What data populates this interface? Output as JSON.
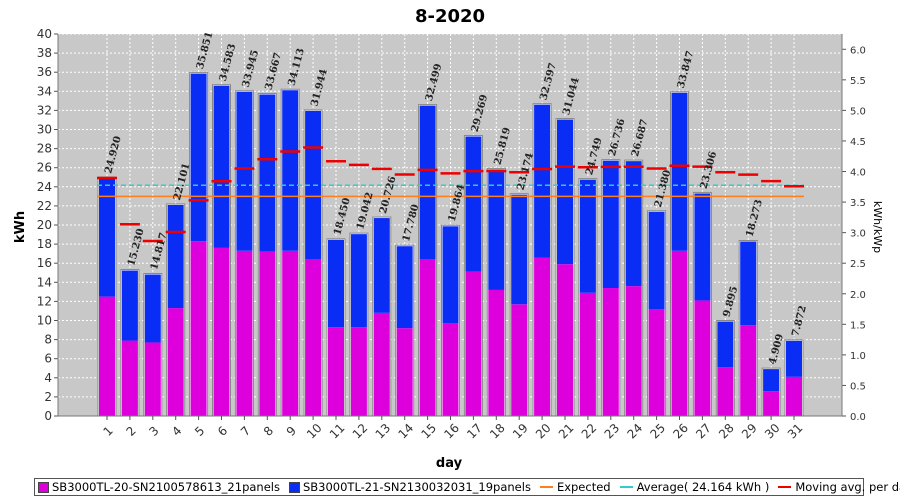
{
  "chart_data": {
    "type": "bar",
    "title": "8-2020",
    "xlabel": "day",
    "ylabel": "kWh",
    "ylabel_right": "kWh/kWp",
    "ylim": [
      0,
      40
    ],
    "yticks": [
      0,
      2,
      4,
      6,
      8,
      10,
      12,
      14,
      16,
      18,
      20,
      22,
      24,
      26,
      28,
      30,
      32,
      34,
      36,
      38,
      40
    ],
    "ylim_right": [
      0,
      6.25
    ],
    "yticks_right": [
      "0.0",
      "0.5",
      "1.0",
      "1.5",
      "2.0",
      "2.5",
      "3.0",
      "3.5",
      "4.0",
      "4.5",
      "5.0",
      "5.5",
      "6.0"
    ],
    "categories": [
      "1",
      "2",
      "3",
      "4",
      "5",
      "6",
      "7",
      "8",
      "9",
      "10",
      "11",
      "12",
      "13",
      "14",
      "15",
      "16",
      "17",
      "18",
      "19",
      "20",
      "21",
      "22",
      "23",
      "24",
      "25",
      "26",
      "27",
      "28",
      "29",
      "30",
      "31"
    ],
    "total_labels": [
      "24.920",
      "15.230",
      "14.817",
      "22.101",
      "35.851",
      "34.583",
      "33.945",
      "33.667",
      "34.113",
      "31.944",
      "18.450",
      "19.042",
      "20.726",
      "17.780",
      "32.499",
      "19.864",
      "29.269",
      "25.819",
      "23.174",
      "32.597",
      "31.044",
      "24.749",
      "26.736",
      "26.687",
      "21.380",
      "33.847",
      "23.306",
      "9.895",
      "18.273",
      "4.909",
      "7.872"
    ],
    "series": [
      {
        "name": "SB3000TL-20-SN2100578613_21panels",
        "color": "#dd00dd",
        "kind": "bar",
        "values": [
          12.5,
          7.9,
          7.7,
          11.3,
          18.3,
          17.6,
          17.3,
          17.2,
          17.3,
          16.4,
          9.3,
          9.3,
          10.8,
          9.2,
          16.4,
          9.7,
          15.1,
          13.2,
          11.7,
          16.6,
          15.9,
          12.9,
          13.4,
          13.6,
          11.2,
          17.3,
          12.1,
          5.1,
          9.5,
          2.6,
          4.1
        ]
      },
      {
        "name": "SB3000TL-21-SN2130032031_19panels",
        "color": "#0a2df5",
        "kind": "bar",
        "values": [
          12.42,
          7.33,
          7.117,
          10.801,
          17.551,
          16.983,
          16.645,
          16.467,
          16.813,
          15.544,
          9.15,
          9.742,
          9.926,
          8.58,
          16.099,
          10.164,
          14.169,
          12.619,
          11.474,
          15.997,
          15.144,
          11.849,
          13.336,
          13.087,
          10.18,
          16.547,
          11.206,
          4.795,
          8.773,
          2.309,
          3.772
        ]
      },
      {
        "name": "Expected",
        "color": "#ff7f1e",
        "kind": "line",
        "value": 23.0
      },
      {
        "name": "Average( 24.164 kWh )",
        "color": "#33cccc",
        "kind": "line",
        "value": 24.164
      },
      {
        "name": "Moving avg. per day.",
        "color": "#ee0000",
        "kind": "step",
        "values": [
          24.92,
          20.08,
          18.33,
          19.27,
          22.58,
          24.58,
          25.92,
          26.89,
          27.69,
          28.11,
          26.67,
          26.3,
          25.88,
          25.29,
          25.77,
          25.41,
          25.64,
          25.65,
          25.52,
          25.87,
          26.11,
          26.05,
          26.08,
          26.1,
          25.91,
          26.21,
          26.11,
          25.53,
          25.28,
          24.6,
          24.06
        ]
      }
    ],
    "legend": [
      {
        "label": "SB3000TL-20-SN2100578613_21panels",
        "color": "#dd00dd",
        "kind": "box"
      },
      {
        "label": "SB3000TL-21-SN2130032031_19panels",
        "color": "#0a2df5",
        "kind": "box"
      },
      {
        "label": "Expected",
        "color": "#ff7f1e",
        "kind": "line"
      },
      {
        "label": "Average( 24.164 kWh )",
        "color": "#33cccc",
        "kind": "line"
      },
      {
        "label": "Moving avg. per day.",
        "color": "#ee0000",
        "kind": "line"
      }
    ]
  }
}
